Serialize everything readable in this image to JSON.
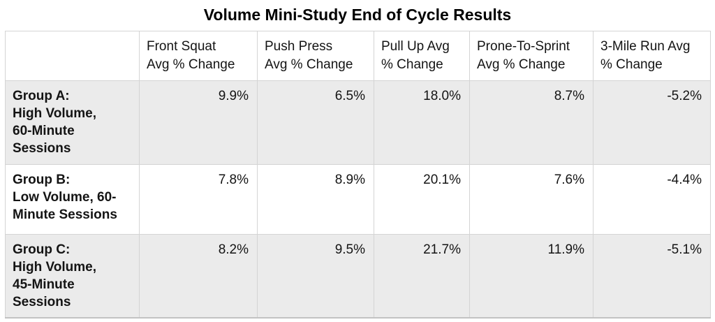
{
  "colors": {
    "row_alt_bg": "#EBEBEB",
    "border": "#D4D4D4",
    "border_bottom": "#C2C2C2",
    "text": "#141414"
  },
  "chart_data": {
    "type": "table",
    "title": "Volume Mini-Study End of Cycle Results",
    "columns": [
      "",
      "Front Squat\nAvg % Change",
      "Push Press\nAvg % Change",
      "Pull Up Avg\n% Change",
      "Prone-To-Sprint\nAvg % Change",
      "3-Mile Run Avg\n% Change"
    ],
    "rows": [
      {
        "label": "Group A:\nHigh Volume,\n60-Minute\nSessions",
        "values": [
          "9.9%",
          "6.5%",
          "18.0%",
          "8.7%",
          "-5.2%"
        ],
        "values_numeric": [
          9.9,
          6.5,
          18.0,
          8.7,
          -5.2
        ]
      },
      {
        "label": "Group B:\nLow Volume, 60-\nMinute Sessions",
        "values": [
          "7.8%",
          "8.9%",
          "20.1%",
          "7.6%",
          "-4.4%"
        ],
        "values_numeric": [
          7.8,
          8.9,
          20.1,
          7.6,
          -4.4
        ]
      },
      {
        "label": "Group C:\nHigh Volume,\n45-Minute\nSessions",
        "values": [
          "8.2%",
          "9.5%",
          "21.7%",
          "11.9%",
          "-5.1%"
        ],
        "values_numeric": [
          8.2,
          9.5,
          21.7,
          11.9,
          -5.1
        ]
      }
    ],
    "layout": {
      "legend": "none",
      "grid": "table-borders",
      "alt_row_shading": [
        0,
        2
      ]
    }
  }
}
